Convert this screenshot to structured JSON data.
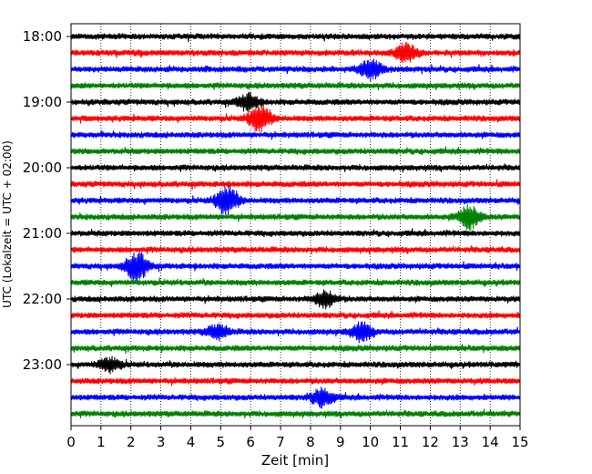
{
  "chart_data": {
    "type": "line",
    "title": "",
    "xlabel": "Zeit  [min]",
    "ylabel": "UTC (Lokalzeit = UTC + 02:00)",
    "xlim": [
      0,
      15
    ],
    "x_ticks": [
      "0",
      "1",
      "2",
      "3",
      "4",
      "5",
      "6",
      "7",
      "8",
      "9",
      "10",
      "11",
      "12",
      "13",
      "14",
      "15"
    ],
    "y_tick_labels": [
      "18:00",
      "19:00",
      "20:00",
      "21:00",
      "22:00",
      "23:00"
    ],
    "row_interval_min": 15,
    "row_start": "18:00",
    "row_count": 24,
    "colors": [
      "#000000",
      "#ff0000",
      "#0000ff",
      "#008000"
    ],
    "vertical_grid": "dotted",
    "events": [
      {
        "row": 1,
        "t": 11.2,
        "amp": 1.6
      },
      {
        "row": 2,
        "t": 10.0,
        "amp": 1.8
      },
      {
        "row": 4,
        "t": 5.9,
        "amp": 1.4
      },
      {
        "row": 5,
        "t": 6.3,
        "amp": 2.4
      },
      {
        "row": 10,
        "t": 5.2,
        "amp": 2.6
      },
      {
        "row": 11,
        "t": 13.3,
        "amp": 2.0
      },
      {
        "row": 14,
        "t": 2.2,
        "amp": 2.6
      },
      {
        "row": 16,
        "t": 8.5,
        "amp": 1.4
      },
      {
        "row": 18,
        "t": 4.9,
        "amp": 1.2
      },
      {
        "row": 18,
        "t": 9.7,
        "amp": 1.5
      },
      {
        "row": 20,
        "t": 1.3,
        "amp": 1.2
      },
      {
        "row": 22,
        "t": 8.4,
        "amp": 1.6
      }
    ]
  }
}
